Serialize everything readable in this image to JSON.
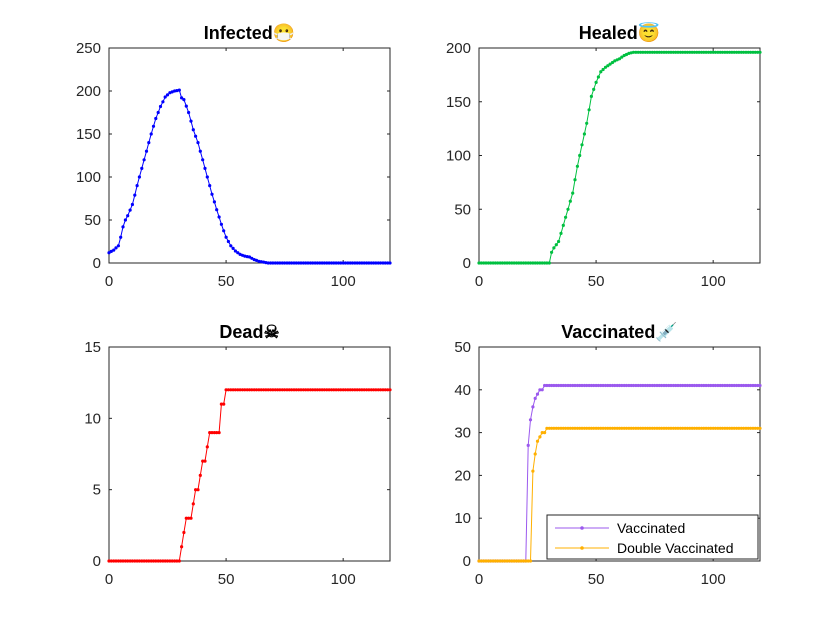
{
  "chart_data": [
    {
      "type": "line",
      "title": "Infected😷",
      "color": "#0000ff",
      "xlim": [
        0,
        120
      ],
      "ylim": [
        0,
        250
      ],
      "xticks": [
        0,
        50,
        100
      ],
      "yticks": [
        0,
        50,
        100,
        150,
        200,
        250
      ],
      "grid": false,
      "series": [
        {
          "keypoints": [
            [
              0,
              12
            ],
            [
              2,
              15
            ],
            [
              4,
              20
            ],
            [
              5,
              30
            ],
            [
              6,
              42
            ],
            [
              7,
              50
            ],
            [
              8,
              55
            ],
            [
              10,
              68
            ],
            [
              12,
              90
            ],
            [
              14,
              110
            ],
            [
              16,
              130
            ],
            [
              18,
              150
            ],
            [
              20,
              168
            ],
            [
              22,
              182
            ],
            [
              24,
              193
            ],
            [
              26,
              198
            ],
            [
              28,
              200
            ],
            [
              30,
              201
            ],
            [
              31,
              192
            ],
            [
              32,
              190
            ],
            [
              34,
              175
            ],
            [
              36,
              155
            ],
            [
              38,
              140
            ],
            [
              40,
              120
            ],
            [
              42,
              100
            ],
            [
              44,
              80
            ],
            [
              46,
              62
            ],
            [
              48,
              45
            ],
            [
              50,
              30
            ],
            [
              52,
              20
            ],
            [
              54,
              14
            ],
            [
              56,
              10
            ],
            [
              58,
              8
            ],
            [
              60,
              7
            ],
            [
              62,
              4
            ],
            [
              64,
              2
            ],
            [
              66,
              1
            ],
            [
              68,
              0
            ],
            [
              120,
              0
            ]
          ]
        }
      ]
    },
    {
      "type": "line",
      "title": "Healed😇",
      "color": "#00c040",
      "xlim": [
        0,
        120
      ],
      "ylim": [
        0,
        200
      ],
      "xticks": [
        0,
        50,
        100
      ],
      "yticks": [
        0,
        50,
        100,
        150,
        200
      ],
      "grid": false,
      "series": [
        {
          "keypoints": [
            [
              0,
              0
            ],
            [
              30,
              0
            ],
            [
              31,
              10
            ],
            [
              32,
              14
            ],
            [
              34,
              20
            ],
            [
              36,
              35
            ],
            [
              38,
              50
            ],
            [
              40,
              65
            ],
            [
              42,
              90
            ],
            [
              44,
              110
            ],
            [
              46,
              130
            ],
            [
              48,
              155
            ],
            [
              50,
              168
            ],
            [
              52,
              178
            ],
            [
              54,
              182
            ],
            [
              56,
              185
            ],
            [
              58,
              188
            ],
            [
              60,
              190
            ],
            [
              62,
              193
            ],
            [
              64,
              195
            ],
            [
              66,
              196
            ],
            [
              68,
              196
            ],
            [
              120,
              196
            ]
          ]
        }
      ]
    },
    {
      "type": "line",
      "title": "Dead☠",
      "color": "#ff0000",
      "xlim": [
        0,
        120
      ],
      "ylim": [
        0,
        15
      ],
      "xticks": [
        0,
        50,
        100
      ],
      "yticks": [
        0,
        5,
        10,
        15
      ],
      "grid": false,
      "series": [
        {
          "keypoints": [
            [
              0,
              0
            ],
            [
              30,
              0
            ],
            [
              31,
              1
            ],
            [
              32,
              2
            ],
            [
              33,
              3
            ],
            [
              35,
              3
            ],
            [
              36,
              4
            ],
            [
              37,
              5
            ],
            [
              38,
              5
            ],
            [
              39,
              6
            ],
            [
              40,
              7
            ],
            [
              41,
              7
            ],
            [
              42,
              8
            ],
            [
              43,
              9
            ],
            [
              47,
              9
            ],
            [
              48,
              11
            ],
            [
              49,
              11
            ],
            [
              50,
              12
            ],
            [
              120,
              12
            ]
          ]
        }
      ]
    },
    {
      "type": "line",
      "title": "Vaccinated💉",
      "xlim": [
        0,
        120
      ],
      "ylim": [
        0,
        50
      ],
      "xticks": [
        0,
        50,
        100
      ],
      "yticks": [
        0,
        10,
        20,
        30,
        40,
        50
      ],
      "grid": false,
      "legend_position": "bottom-right",
      "series": [
        {
          "name": "Vaccinated",
          "color": "#9b59ee",
          "keypoints": [
            [
              0,
              0
            ],
            [
              20,
              0
            ],
            [
              21,
              27
            ],
            [
              22,
              33
            ],
            [
              23,
              36
            ],
            [
              24,
              38
            ],
            [
              25,
              39
            ],
            [
              26,
              40
            ],
            [
              27,
              40
            ],
            [
              28,
              41
            ],
            [
              120,
              41
            ]
          ]
        },
        {
          "name": "Double Vaccinated",
          "color": "#ffb000",
          "keypoints": [
            [
              0,
              0
            ],
            [
              22,
              0
            ],
            [
              23,
              21
            ],
            [
              24,
              25
            ],
            [
              25,
              28
            ],
            [
              26,
              29
            ],
            [
              27,
              30
            ],
            [
              28,
              30
            ],
            [
              29,
              31
            ],
            [
              120,
              31
            ]
          ]
        }
      ]
    }
  ]
}
